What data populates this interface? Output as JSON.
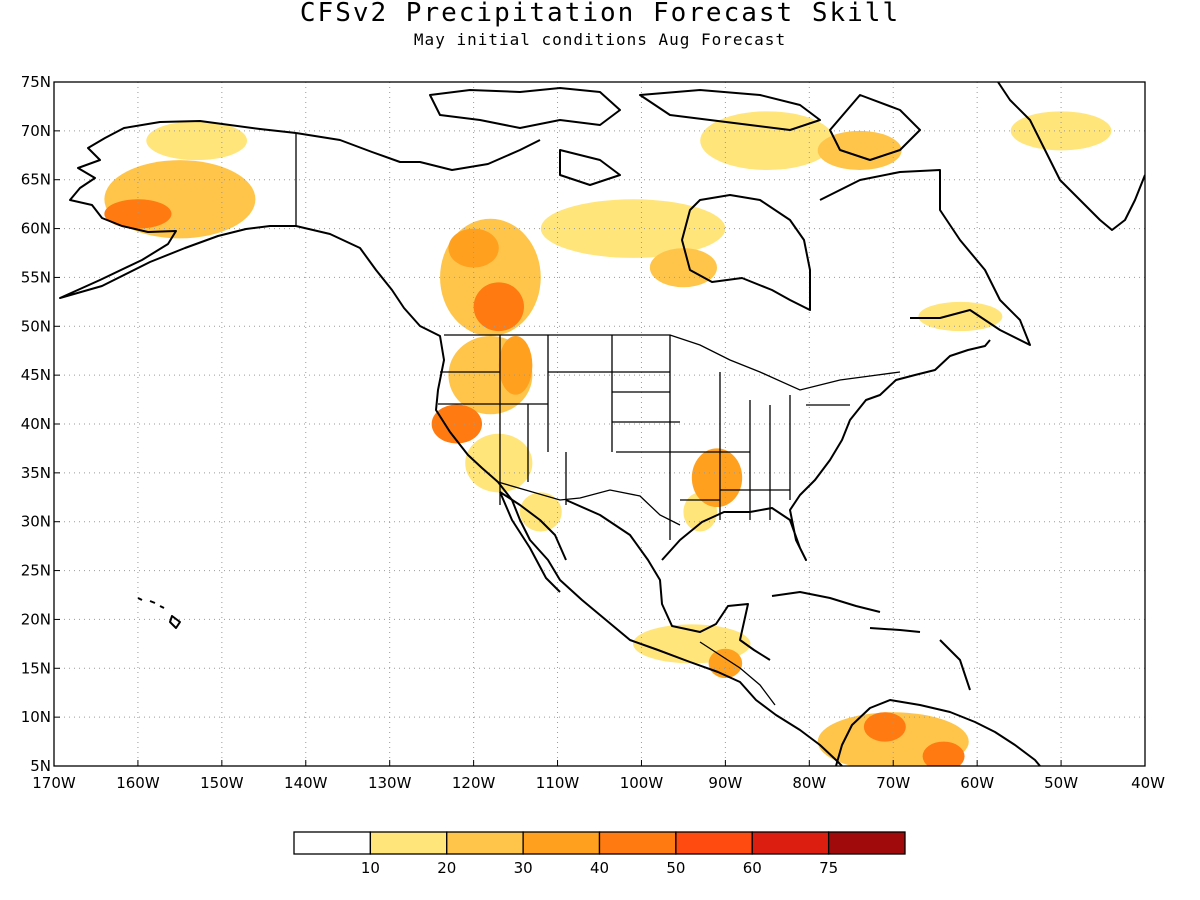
{
  "title": "CFSv2 Precipitation Forecast Skill",
  "subtitle": "May initial conditions  Aug Forecast",
  "map": {
    "lon_range": [
      -170,
      -40
    ],
    "lat_range": [
      5,
      75
    ],
    "lat_labels": [
      "5N",
      "10N",
      "15N",
      "20N",
      "25N",
      "30N",
      "35N",
      "40N",
      "45N",
      "50N",
      "55N",
      "60N",
      "65N",
      "70N",
      "75N"
    ],
    "lon_labels": [
      "170W",
      "160W",
      "150W",
      "140W",
      "130W",
      "120W",
      "110W",
      "100W",
      "90W",
      "80W",
      "70W",
      "60W",
      "50W",
      "40W"
    ],
    "grid": "dotted"
  },
  "colorbar": {
    "colors": [
      "#ffffff",
      "#ffe57a",
      "#ffc54a",
      "#ffa01e",
      "#ff7a10",
      "#ff4a10",
      "#dc1e10",
      "#a00a0a"
    ],
    "labels": [
      "10",
      "20",
      "30",
      "40",
      "50",
      "60",
      "75"
    ]
  },
  "skill_regions": [
    {
      "lon": -155,
      "lat": 63,
      "rx": 9,
      "ry": 4,
      "level": 2
    },
    {
      "lon": -160,
      "lat": 61.5,
      "rx": 4,
      "ry": 1.5,
      "level": 4
    },
    {
      "lon": -153,
      "lat": 69,
      "rx": 6,
      "ry": 2,
      "level": 1
    },
    {
      "lon": -118,
      "lat": 55,
      "rx": 6,
      "ry": 6,
      "level": 2
    },
    {
      "lon": -117,
      "lat": 52,
      "rx": 3,
      "ry": 2.5,
      "level": 4
    },
    {
      "lon": -120,
      "lat": 58,
      "rx": 3,
      "ry": 2,
      "level": 3
    },
    {
      "lon": -118,
      "lat": 45,
      "rx": 5,
      "ry": 4,
      "level": 2
    },
    {
      "lon": -115,
      "lat": 46,
      "rx": 2,
      "ry": 3,
      "level": 3
    },
    {
      "lon": -122,
      "lat": 40,
      "rx": 3,
      "ry": 2,
      "level": 4
    },
    {
      "lon": -117,
      "lat": 36,
      "rx": 4,
      "ry": 3,
      "level": 1
    },
    {
      "lon": -112,
      "lat": 31,
      "rx": 2.5,
      "ry": 2,
      "level": 1
    },
    {
      "lon": -101,
      "lat": 60,
      "rx": 11,
      "ry": 3,
      "level": 1
    },
    {
      "lon": -95,
      "lat": 56,
      "rx": 4,
      "ry": 2,
      "level": 2
    },
    {
      "lon": -91,
      "lat": 34.5,
      "rx": 3,
      "ry": 3,
      "level": 3
    },
    {
      "lon": -93,
      "lat": 31,
      "rx": 2,
      "ry": 2,
      "level": 1
    },
    {
      "lon": -85,
      "lat": 69,
      "rx": 8,
      "ry": 3,
      "level": 1
    },
    {
      "lon": -74,
      "lat": 68,
      "rx": 5,
      "ry": 2,
      "level": 2
    },
    {
      "lon": -62,
      "lat": 51,
      "rx": 5,
      "ry": 1.5,
      "level": 1
    },
    {
      "lon": -94,
      "lat": 17.5,
      "rx": 7,
      "ry": 2,
      "level": 1
    },
    {
      "lon": -90,
      "lat": 15.5,
      "rx": 2,
      "ry": 1.5,
      "level": 3
    },
    {
      "lon": -70,
      "lat": 7.5,
      "rx": 9,
      "ry": 3,
      "level": 2
    },
    {
      "lon": -71,
      "lat": 9,
      "rx": 2.5,
      "ry": 1.5,
      "level": 4
    },
    {
      "lon": -64,
      "lat": 6,
      "rx": 2.5,
      "ry": 1.5,
      "level": 4
    },
    {
      "lon": -50,
      "lat": 70,
      "rx": 6,
      "ry": 2,
      "level": 1
    }
  ]
}
